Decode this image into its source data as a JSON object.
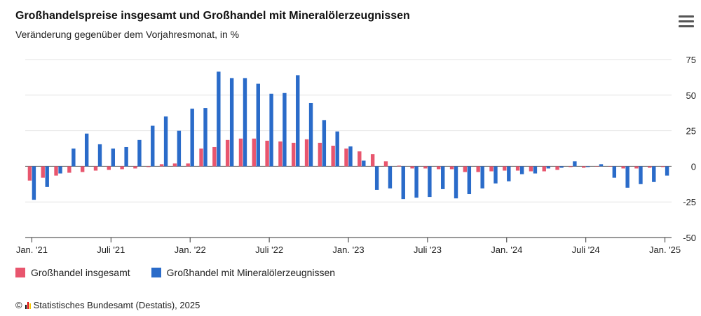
{
  "chart": {
    "title": "Großhandelspreise insgesamt und Großhandel mit Mineralölerzeugnissen",
    "subtitle": "Veränderung gegenüber dem Vorjahresmonat, in %"
  },
  "legend": [
    {
      "label": "Großhandel insgesamt",
      "color": "#e8566e"
    },
    {
      "label": "Großhandel mit Mineralölerzeugnissen",
      "color": "#2a6bc9"
    }
  ],
  "credit": {
    "symbol": "©",
    "text": "Statistisches Bundesamt (Destatis), 2025"
  },
  "menu": {
    "icon": "hamburger-menu-icon"
  },
  "chart_data": {
    "type": "bar",
    "categories": [
      "Jan. '21",
      "Feb. '21",
      "Mär. '21",
      "Apr. '21",
      "Mai '21",
      "Jun. '21",
      "Juli '21",
      "Aug. '21",
      "Sep. '21",
      "Okt. '21",
      "Nov. '21",
      "Dez. '21",
      "Jan. '22",
      "Feb. '22",
      "Mär. '22",
      "Apr. '22",
      "Mai '22",
      "Jun. '22",
      "Juli '22",
      "Aug. '22",
      "Sep. '22",
      "Okt. '22",
      "Nov. '22",
      "Dez. '22",
      "Jan. '23",
      "Feb. '23",
      "Mär. '23",
      "Apr. '23",
      "Mai '23",
      "Jun. '23",
      "Juli '23",
      "Aug. '23",
      "Sep. '23",
      "Okt. '23",
      "Nov. '23",
      "Dez. '23",
      "Jan. '24",
      "Feb. '24",
      "Mär. '24",
      "Apr. '24",
      "Mai '24",
      "Jun. '24",
      "Juli '24",
      "Aug. '24",
      "Sep. '24",
      "Okt. '24",
      "Nov. '24",
      "Dez. '24",
      "Jan. '25"
    ],
    "xtick_labels": [
      "Jan. '21",
      "Juli '21",
      "Jan. '22",
      "Juli '22",
      "Jan. '23",
      "Juli '23",
      "Jan. '24",
      "Juli '24",
      "Jan. '25"
    ],
    "xtick_every": 6,
    "series": [
      {
        "name": "Großhandel insgesamt",
        "color": "#e8566e",
        "values": [
          -10.0,
          -8.0,
          -6.5,
          -4.5,
          -4.0,
          -3.0,
          -2.5,
          -2.0,
          -1.5,
          -0.5,
          1.5,
          2.0,
          2.0,
          12.5,
          13.5,
          18.5,
          19.5,
          19.5,
          18.0,
          17.5,
          16.5,
          19.0,
          16.5,
          14.5,
          12.5,
          10.5,
          8.5,
          3.5,
          0.5,
          -1.5,
          -1.5,
          -2.0,
          -2.0,
          -4.0,
          -4.0,
          -3.5,
          -3.0,
          -3.0,
          -3.5,
          -3.5,
          -2.5,
          -0.5,
          -1.0,
          0.0,
          0.0,
          -1.5,
          -1.5,
          -1.0,
          -0.5
        ]
      },
      {
        "name": "Großhandel mit Mineralölerzeugnissen",
        "color": "#2a6bc9",
        "values": [
          -23.5,
          -14.5,
          -5.0,
          12.5,
          23.0,
          15.5,
          12.5,
          13.5,
          18.5,
          28.5,
          35.0,
          25.0,
          40.5,
          41.0,
          66.5,
          62.0,
          62.0,
          58.0,
          51.0,
          51.5,
          64.0,
          44.5,
          32.5,
          24.5,
          14.0,
          4.0,
          -16.5,
          -15.5,
          -23.0,
          -22.0,
          -21.5,
          -16.0,
          -22.5,
          -19.5,
          -15.5,
          -12.0,
          -10.5,
          -5.5,
          -5.0,
          -1.5,
          -1.0,
          3.5,
          -0.5,
          1.5,
          -8.0,
          -15.0,
          -12.5,
          -11.0,
          -6.5
        ]
      }
    ],
    "ylim": [
      -50,
      75
    ],
    "yticks": [
      -50,
      -25,
      0,
      25,
      50,
      75
    ],
    "xlabel": "",
    "ylabel": "",
    "grid": true,
    "legend_position": "bottom-left"
  }
}
